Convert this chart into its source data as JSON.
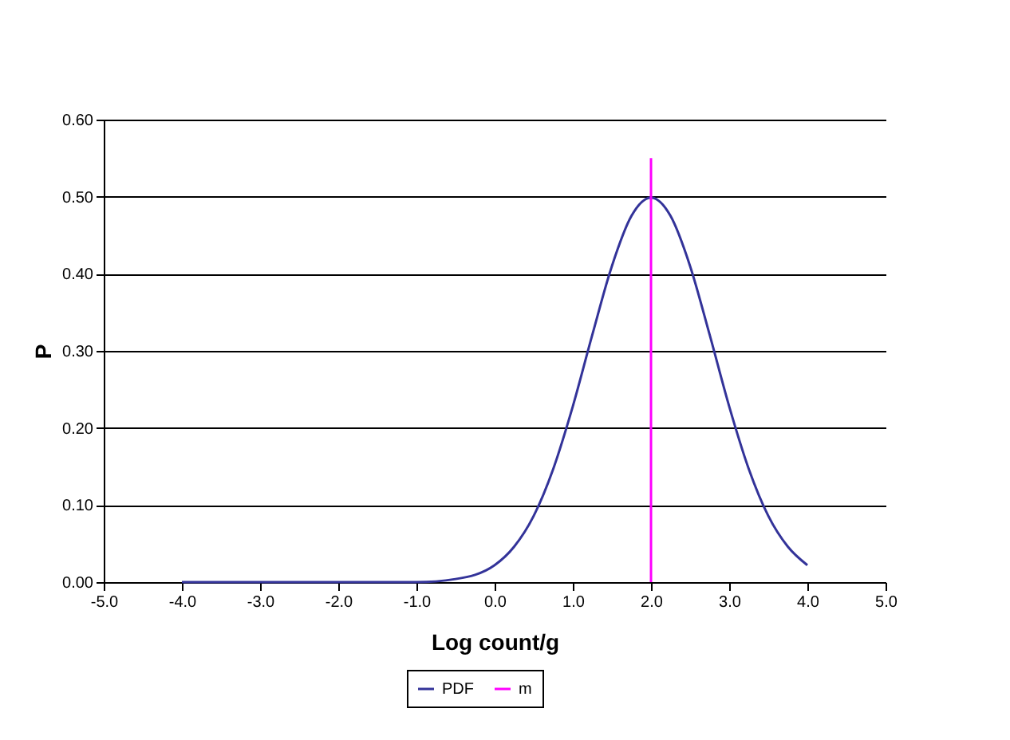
{
  "chart_data": {
    "type": "line",
    "xlabel": "Log count/g",
    "ylabel": "P",
    "xlim": [
      -5,
      5
    ],
    "ylim": [
      0,
      0.6
    ],
    "xticks": [
      {
        "value": -5,
        "label": "-5.0"
      },
      {
        "value": -4,
        "label": "-4.0"
      },
      {
        "value": -3,
        "label": "-3.0"
      },
      {
        "value": -2,
        "label": "-2.0"
      },
      {
        "value": -1,
        "label": "-1.0"
      },
      {
        "value": 0,
        "label": "0.0"
      },
      {
        "value": 1,
        "label": "1.0"
      },
      {
        "value": 2,
        "label": "2.0"
      },
      {
        "value": 3,
        "label": "3.0"
      },
      {
        "value": 4,
        "label": "4.0"
      },
      {
        "value": 5,
        "label": "5.0"
      }
    ],
    "yticks": [
      {
        "value": 0,
        "label": "0.00"
      },
      {
        "value": 0.1,
        "label": "0.10"
      },
      {
        "value": 0.2,
        "label": "0.20"
      },
      {
        "value": 0.3,
        "label": "0.30"
      },
      {
        "value": 0.4,
        "label": "0.40"
      },
      {
        "value": 0.5,
        "label": "0.50"
      },
      {
        "value": 0.6,
        "label": "0.60"
      }
    ],
    "grid": "y",
    "legend": "bottom",
    "marker": "none",
    "line_style": "solid",
    "series": [
      {
        "name": "PDF",
        "color": "#333399",
        "x": [
          -4,
          -3.5,
          -3,
          -2.5,
          -2,
          -1.5,
          -1,
          -0.5,
          0,
          0.25,
          0.5,
          0.75,
          1,
          1.25,
          1.5,
          1.75,
          2,
          2.25,
          2.5,
          2.75,
          3,
          3.25,
          3.5,
          3.75,
          4
        ],
        "values": [
          0,
          0,
          0,
          0,
          0,
          0,
          0.0,
          0.004,
          0.022,
          0.046,
          0.086,
          0.147,
          0.228,
          0.321,
          0.41,
          0.475,
          0.499,
          0.475,
          0.41,
          0.321,
          0.228,
          0.147,
          0.086,
          0.046,
          0.022
        ]
      },
      {
        "name": "m",
        "color": "#ff00ff",
        "x": [
          2,
          2
        ],
        "values": [
          0,
          0.55
        ]
      }
    ]
  }
}
